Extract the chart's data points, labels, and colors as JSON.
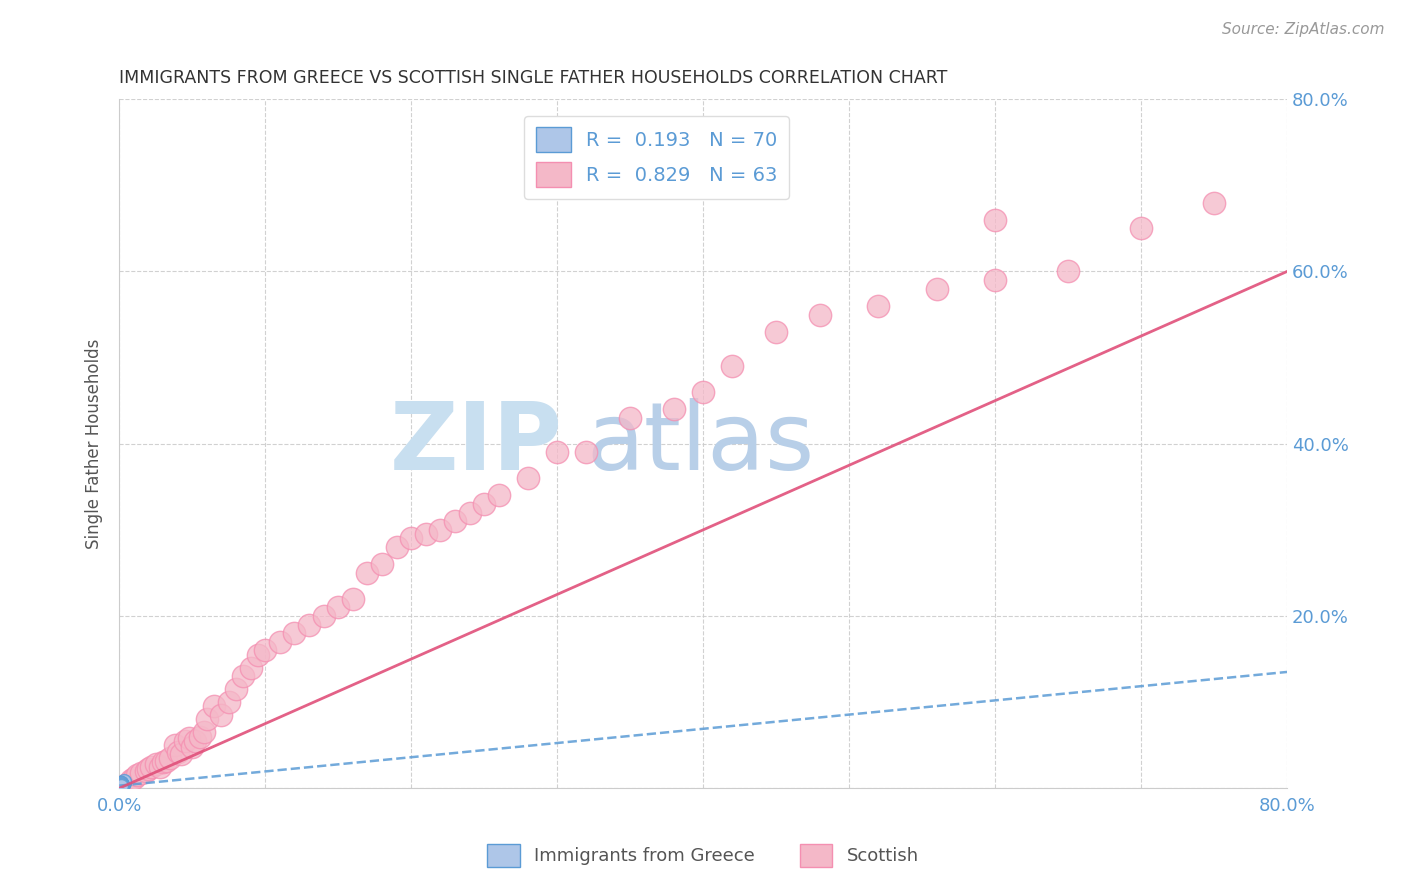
{
  "title": "IMMIGRANTS FROM GREECE VS SCOTTISH SINGLE FATHER HOUSEHOLDS CORRELATION CHART",
  "source": "Source: ZipAtlas.com",
  "ylabel": "Single Father Households",
  "xlim": [
    0,
    0.8
  ],
  "ylim": [
    0,
    0.8
  ],
  "legend_color1": "#aec6e8",
  "legend_color2": "#f4b8c8",
  "watermark_zip": "ZIP",
  "watermark_atlas": "atlas",
  "watermark_color_zip": "#c8dff0",
  "watermark_color_atlas": "#b8cfe8",
  "title_color": "#333333",
  "blue_color": "#5b9bd5",
  "pink_color": "#f48fb1",
  "scatter_blue_facecolor": "#aec6e8",
  "scatter_blue_edgecolor": "#5b9bd5",
  "scatter_pink_facecolor": "#f4b8c8",
  "scatter_pink_edgecolor": "#f48fb1",
  "trendline_blue_color": "#5b9bd5",
  "trendline_pink_color": "#e0507a",
  "axis_color": "#555555",
  "grid_color": "#cccccc",
  "greek_x": [
    0.001,
    0.001,
    0.002,
    0.001,
    0.002,
    0.001,
    0.001,
    0.002,
    0.001,
    0.001,
    0.002,
    0.001,
    0.001,
    0.002,
    0.001,
    0.001,
    0.002,
    0.001,
    0.001,
    0.002,
    0.001,
    0.001,
    0.003,
    0.001,
    0.002,
    0.001,
    0.001,
    0.002,
    0.001,
    0.001,
    0.003,
    0.001,
    0.002,
    0.001,
    0.001,
    0.002,
    0.001,
    0.001,
    0.002,
    0.001,
    0.001,
    0.003,
    0.001,
    0.002,
    0.001,
    0.001,
    0.002,
    0.001,
    0.001,
    0.002,
    0.001,
    0.001,
    0.002,
    0.001,
    0.001,
    0.002,
    0.001,
    0.001,
    0.002,
    0.001,
    0.001,
    0.002,
    0.001,
    0.001,
    0.002,
    0.001,
    0.001,
    0.002,
    0.001,
    0.001
  ],
  "greek_y": [
    0.003,
    0.005,
    0.004,
    0.003,
    0.006,
    0.002,
    0.004,
    0.005,
    0.003,
    0.004,
    0.003,
    0.005,
    0.004,
    0.003,
    0.006,
    0.002,
    0.004,
    0.005,
    0.003,
    0.004,
    0.003,
    0.005,
    0.006,
    0.003,
    0.004,
    0.002,
    0.004,
    0.005,
    0.003,
    0.004,
    0.007,
    0.005,
    0.004,
    0.003,
    0.006,
    0.002,
    0.004,
    0.005,
    0.003,
    0.004,
    0.003,
    0.008,
    0.004,
    0.003,
    0.006,
    0.002,
    0.004,
    0.005,
    0.003,
    0.004,
    0.003,
    0.005,
    0.004,
    0.003,
    0.006,
    0.002,
    0.004,
    0.005,
    0.003,
    0.004,
    0.003,
    0.004,
    0.003,
    0.006,
    0.002,
    0.004,
    0.005,
    0.003,
    0.004,
    0.003
  ],
  "scottish_x": [
    0.005,
    0.008,
    0.01,
    0.012,
    0.015,
    0.018,
    0.02,
    0.022,
    0.025,
    0.028,
    0.03,
    0.032,
    0.035,
    0.038,
    0.04,
    0.042,
    0.045,
    0.048,
    0.05,
    0.052,
    0.055,
    0.058,
    0.06,
    0.065,
    0.07,
    0.075,
    0.08,
    0.085,
    0.09,
    0.095,
    0.1,
    0.11,
    0.12,
    0.13,
    0.14,
    0.15,
    0.16,
    0.17,
    0.18,
    0.19,
    0.2,
    0.21,
    0.22,
    0.23,
    0.24,
    0.25,
    0.26,
    0.28,
    0.3,
    0.32,
    0.35,
    0.38,
    0.4,
    0.42,
    0.45,
    0.48,
    0.52,
    0.56,
    0.6,
    0.65,
    0.7,
    0.75,
    0.6
  ],
  "scottish_y": [
    0.005,
    0.01,
    0.012,
    0.015,
    0.018,
    0.02,
    0.022,
    0.025,
    0.028,
    0.025,
    0.03,
    0.032,
    0.035,
    0.05,
    0.042,
    0.04,
    0.055,
    0.058,
    0.048,
    0.055,
    0.06,
    0.065,
    0.08,
    0.095,
    0.085,
    0.1,
    0.115,
    0.13,
    0.14,
    0.155,
    0.16,
    0.17,
    0.18,
    0.19,
    0.2,
    0.21,
    0.22,
    0.25,
    0.26,
    0.28,
    0.29,
    0.295,
    0.3,
    0.31,
    0.32,
    0.33,
    0.34,
    0.36,
    0.39,
    0.39,
    0.43,
    0.44,
    0.46,
    0.49,
    0.53,
    0.55,
    0.56,
    0.58,
    0.59,
    0.6,
    0.65,
    0.68,
    0.66
  ],
  "trendline_blue_x0": 0.0,
  "trendline_blue_x1": 0.8,
  "trendline_blue_y0": 0.003,
  "trendline_blue_y1": 0.135,
  "trendline_pink_x0": 0.0,
  "trendline_pink_x1": 0.8,
  "trendline_pink_y0": 0.0,
  "trendline_pink_y1": 0.6
}
